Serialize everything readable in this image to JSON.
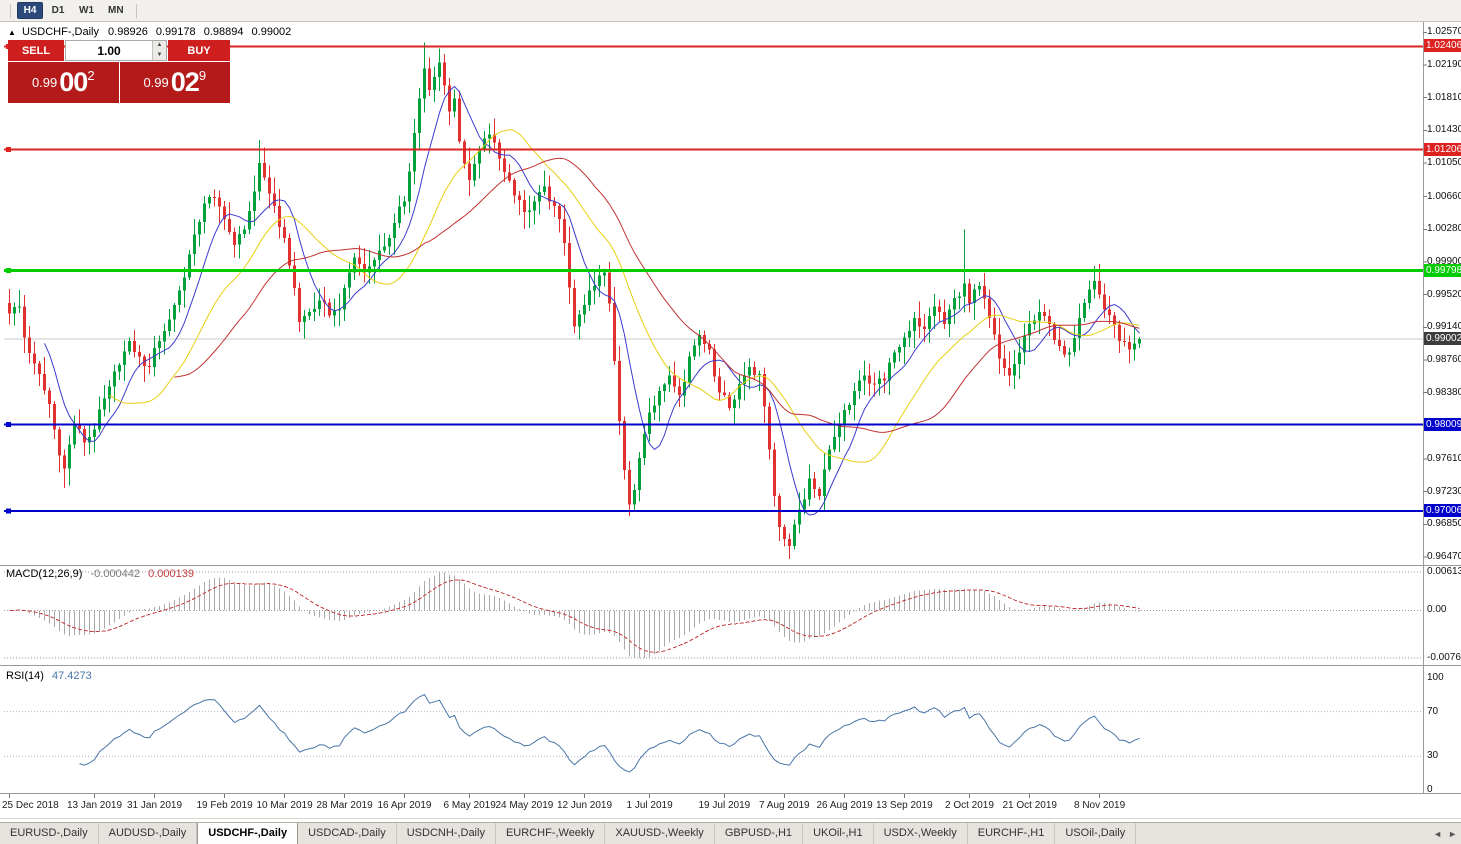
{
  "toolbar": {
    "periods": [
      {
        "label": "H4",
        "active": true
      },
      {
        "label": "D1",
        "active": false
      },
      {
        "label": "W1",
        "active": false
      },
      {
        "label": "MN",
        "active": false
      }
    ]
  },
  "chart_window": {
    "title_arrow": "▲",
    "title_symbol": "USDCHF-,Daily",
    "ohlc": {
      "open": "0.98926",
      "high": "0.99178",
      "low": "0.98894",
      "close": "0.99002"
    }
  },
  "trade_widget": {
    "sell_label": "SELL",
    "buy_label": "BUY",
    "volume": "1.00",
    "spin_up": "▲",
    "spin_down": "▼",
    "sell_price": {
      "prefix": "0.99",
      "big": "00",
      "sup": "2"
    },
    "buy_price": {
      "prefix": "0.99",
      "big": "02",
      "sup": "9"
    }
  },
  "price_axis": {
    "ticks": [
      "1.02570",
      "1.02190",
      "1.01810",
      "1.01430",
      "1.01050",
      "1.00660",
      "1.00280",
      "0.99900",
      "0.99520",
      "0.99140",
      "0.98760",
      "0.98380",
      "0.98000",
      "0.97610",
      "0.97230",
      "0.96850",
      "0.96470"
    ]
  },
  "current_price": {
    "label": "0.99002",
    "badge_color": "#3c3c3c"
  },
  "hlines": [
    {
      "price": 1.02406,
      "label": "1.02406",
      "color": "#dd2222",
      "width": 2
    },
    {
      "price": 1.01206,
      "label": "1.01206",
      "color": "#dd2222",
      "width": 2
    },
    {
      "price": 0.99798,
      "label": "0.99798",
      "color": "#00cc00",
      "width": 3
    },
    {
      "price": 0.98009,
      "label": "0.98009",
      "color": "#0000cc",
      "width": 2
    },
    {
      "price": 0.97006,
      "label": "0.97006",
      "color": "#0000cc",
      "width": 2
    }
  ],
  "macd_panel": {
    "label": "MACD(12,26,9)",
    "value_main": "-0.000442",
    "value_signal": "0.000139",
    "axis": [
      "0.00613",
      "0.00",
      "-0.00761"
    ]
  },
  "rsi_panel": {
    "label": "RSI(14)",
    "value": "47.4273",
    "axis": [
      "100",
      "70",
      "30",
      "0"
    ]
  },
  "tabs": {
    "scroll_left": "◄",
    "scroll_right": "►",
    "items": [
      {
        "label": "EURUSD-,Daily",
        "active": false
      },
      {
        "label": "AUDUSD-,Daily",
        "active": false
      },
      {
        "label": "USDCHF-,Daily",
        "active": true
      },
      {
        "label": "USDCAD-,Daily",
        "active": false
      },
      {
        "label": "USDCNH-,Daily",
        "active": false
      },
      {
        "label": "EURCHF-,Weekly",
        "active": false
      },
      {
        "label": "XAUUSD-,Weekly",
        "active": false
      },
      {
        "label": "GBPUSD-,H1",
        "active": false
      },
      {
        "label": "UKOil-,H1",
        "active": false
      },
      {
        "label": "USDX-,Weekly",
        "active": false
      },
      {
        "label": "EURCHF-,H1",
        "active": false
      },
      {
        "label": "USOil-,Daily",
        "active": false
      }
    ]
  },
  "chart_data": {
    "type": "candlestick",
    "symbol": "USDCHF",
    "timeframe": "Daily",
    "title": "USDCHF-,Daily",
    "last_ohlc": {
      "open": 0.98926,
      "high": 0.99178,
      "low": 0.98894,
      "close": 0.99002
    },
    "y_axis": {
      "min": 0.964,
      "max": 1.0262,
      "ticks": [
        1.0257,
        1.0219,
        1.0181,
        1.0143,
        1.0105,
        1.0066,
        1.0028,
        0.999,
        0.9952,
        0.9914,
        0.9876,
        0.9838,
        0.98,
        0.9761,
        0.9723,
        0.9685,
        0.9647
      ]
    },
    "bar_count": 227,
    "up_color": "#00a13a",
    "down_color": "#e03030",
    "close_waypoints": [
      [
        0,
        0.993
      ],
      [
        2,
        0.9938
      ],
      [
        3,
        0.9902
      ],
      [
        5,
        0.9872
      ],
      [
        8,
        0.9825
      ],
      [
        10,
        0.9765
      ],
      [
        11,
        0.975
      ],
      [
        13,
        0.9802
      ],
      [
        15,
        0.978
      ],
      [
        17,
        0.9795
      ],
      [
        20,
        0.9845
      ],
      [
        22,
        0.987
      ],
      [
        24,
        0.9898
      ],
      [
        26,
        0.988
      ],
      [
        28,
        0.9868
      ],
      [
        29,
        0.989
      ],
      [
        31,
        0.991
      ],
      [
        33,
        0.994
      ],
      [
        35,
        0.9972
      ],
      [
        37,
        1.0022
      ],
      [
        39,
        1.0058
      ],
      [
        41,
        1.0065
      ],
      [
        43,
        1.004
      ],
      [
        45,
        1.001
      ],
      [
        47,
        1.0028
      ],
      [
        49,
        1.0072
      ],
      [
        50,
        1.0105
      ],
      [
        51,
        1.0088
      ],
      [
        53,
        1.0055
      ],
      [
        55,
        1.0018
      ],
      [
        57,
        0.996
      ],
      [
        58,
        0.992
      ],
      [
        60,
        0.9932
      ],
      [
        62,
        0.9945
      ],
      [
        64,
        0.9928
      ],
      [
        66,
        0.9935
      ],
      [
        67,
        0.996
      ],
      [
        69,
        0.9995
      ],
      [
        71,
        0.9978
      ],
      [
        73,
        0.9992
      ],
      [
        75,
        1.0008
      ],
      [
        77,
        1.0035
      ],
      [
        79,
        1.006
      ],
      [
        80,
        1.0095
      ],
      [
        81,
        1.014
      ],
      [
        82,
        1.018
      ],
      [
        83,
        1.0215
      ],
      [
        84,
        1.019
      ],
      [
        85,
        1.0205
      ],
      [
        86,
        1.0222
      ],
      [
        87,
        1.0195
      ],
      [
        88,
        1.0165
      ],
      [
        89,
        1.018
      ],
      [
        90,
        1.013
      ],
      [
        92,
        1.0085
      ],
      [
        94,
        1.012
      ],
      [
        96,
        1.0138
      ],
      [
        98,
        1.011
      ],
      [
        100,
        1.0085
      ],
      [
        102,
        1.0062
      ],
      [
        103,
        1.0048
      ],
      [
        105,
        1.006
      ],
      [
        107,
        1.0078
      ],
      [
        109,
        1.0055
      ],
      [
        111,
        1.0012
      ],
      [
        112,
        0.996
      ],
      [
        113,
        0.9915
      ],
      [
        115,
        0.994
      ],
      [
        117,
        0.9962
      ],
      [
        119,
        0.9978
      ],
      [
        120,
        0.9942
      ],
      [
        121,
        0.9875
      ],
      [
        122,
        0.9805
      ],
      [
        123,
        0.9748
      ],
      [
        124,
        0.9708
      ],
      [
        125,
        0.9725
      ],
      [
        126,
        0.9762
      ],
      [
        128,
        0.9815
      ],
      [
        130,
        0.984
      ],
      [
        132,
        0.9858
      ],
      [
        134,
        0.9835
      ],
      [
        136,
        0.988
      ],
      [
        138,
        0.9905
      ],
      [
        140,
        0.9888
      ],
      [
        142,
        0.9838
      ],
      [
        144,
        0.982
      ],
      [
        146,
        0.9848
      ],
      [
        148,
        0.9868
      ],
      [
        150,
        0.986
      ],
      [
        151,
        0.9822
      ],
      [
        152,
        0.9772
      ],
      [
        153,
        0.9718
      ],
      [
        154,
        0.9682
      ],
      [
        155,
        0.9668
      ],
      [
        156,
        0.966
      ],
      [
        157,
        0.9685
      ],
      [
        158,
        0.9702
      ],
      [
        160,
        0.9738
      ],
      [
        162,
        0.9718
      ],
      [
        164,
        0.9772
      ],
      [
        166,
        0.98
      ],
      [
        167,
        0.9818
      ],
      [
        169,
        0.984
      ],
      [
        171,
        0.9858
      ],
      [
        173,
        0.9848
      ],
      [
        175,
        0.9852
      ],
      [
        177,
        0.9885
      ],
      [
        179,
        0.9902
      ],
      [
        181,
        0.9925
      ],
      [
        183,
        0.9912
      ],
      [
        185,
        0.9938
      ],
      [
        187,
        0.9918
      ],
      [
        189,
        0.9948
      ],
      [
        191,
        0.9965
      ],
      [
        192,
        0.9942
      ],
      [
        194,
        0.9962
      ],
      [
        196,
        0.9925
      ],
      [
        198,
        0.9878
      ],
      [
        200,
        0.9858
      ],
      [
        202,
        0.9885
      ],
      [
        204,
        0.9918
      ],
      [
        206,
        0.9932
      ],
      [
        208,
        0.9918
      ],
      [
        210,
        0.9892
      ],
      [
        212,
        0.9885
      ],
      [
        214,
        0.9925
      ],
      [
        216,
        0.9958
      ],
      [
        217,
        0.9968
      ],
      [
        218,
        0.9952
      ],
      [
        220,
        0.9928
      ],
      [
        222,
        0.9898
      ],
      [
        224,
        0.9888
      ],
      [
        226,
        0.99002
      ]
    ],
    "spikes": [
      {
        "i": 11,
        "low": 0.9727
      },
      {
        "i": 50,
        "high": 1.0132
      },
      {
        "i": 83,
        "high": 1.0245
      },
      {
        "i": 86,
        "high": 1.0238
      },
      {
        "i": 124,
        "low": 0.9698
      },
      {
        "i": 156,
        "low": 0.965
      },
      {
        "i": 191,
        "high": 1.0028
      }
    ],
    "x_ticks": [
      {
        "i": 0,
        "label": "25 Dec 2018"
      },
      {
        "i": 17,
        "label": "13 Jan 2019"
      },
      {
        "i": 29,
        "label": "31 Jan 2019"
      },
      {
        "i": 43,
        "label": "19 Feb 2019"
      },
      {
        "i": 55,
        "label": "10 Mar 2019"
      },
      {
        "i": 67,
        "label": "28 Mar 2019"
      },
      {
        "i": 79,
        "label": "16 Apr 2019"
      },
      {
        "i": 92,
        "label": "6 May 2019"
      },
      {
        "i": 103,
        "label": "24 May 2019"
      },
      {
        "i": 115,
        "label": "12 Jun 2019"
      },
      {
        "i": 128,
        "label": "1 Jul 2019"
      },
      {
        "i": 143,
        "label": "19 Jul 2019"
      },
      {
        "i": 155,
        "label": "7 Aug 2019"
      },
      {
        "i": 167,
        "label": "26 Aug 2019"
      },
      {
        "i": 179,
        "label": "13 Sep 2019"
      },
      {
        "i": 192,
        "label": "2 Oct 2019"
      },
      {
        "i": 204,
        "label": "21 Oct 2019"
      },
      {
        "i": 218,
        "label": "8 Nov 2019"
      }
    ],
    "moving_averages": [
      {
        "period": 8,
        "color": "#3b3bd0"
      },
      {
        "period": 21,
        "color": "#e8cf10"
      },
      {
        "period": 34,
        "color": "#c23232"
      }
    ],
    "indicators": {
      "macd": {
        "fast": 12,
        "slow": 26,
        "signal": 9,
        "value": -0.000442,
        "signal_value": 0.000139,
        "axis_max": 0.00613,
        "axis_min": -0.00761
      },
      "rsi": {
        "period": 14,
        "value": 47.4273,
        "levels": [
          70,
          30
        ]
      }
    }
  }
}
